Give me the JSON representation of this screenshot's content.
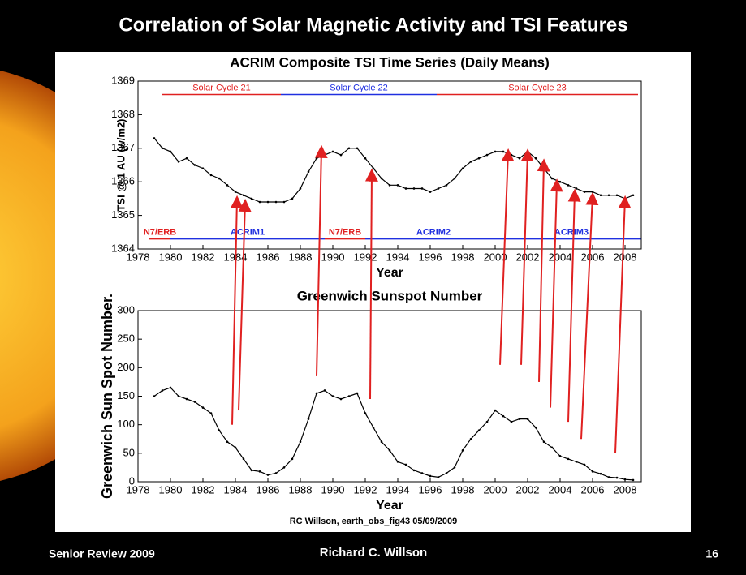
{
  "slide": {
    "title": "Correlation of Solar Magnetic Activity and TSI Features",
    "caption": "RC Willson, earth_obs_fig43  05/09/2009",
    "footer_left": "Senior Review 2009",
    "footer_center": "Richard C. Willson",
    "page_number": "16"
  },
  "chart_data": [
    {
      "type": "line",
      "title": "ACRIM Composite TSI Time Series (Daily Means)",
      "x_label": "Year",
      "y_label": "TSI @ 1 AU (w/m2)",
      "xlim": [
        1978,
        2009
      ],
      "xticks": [
        1978,
        1980,
        1982,
        1984,
        1986,
        1988,
        1990,
        1992,
        1994,
        1996,
        1998,
        2000,
        2002,
        2004,
        2006,
        2008
      ],
      "ylim": [
        1364,
        1369
      ],
      "yticks": [
        1364,
        1365,
        1366,
        1367,
        1368,
        1369
      ],
      "grid": false,
      "x": [
        1979.0,
        1979.5,
        1980.0,
        1980.5,
        1981.0,
        1981.5,
        1982.0,
        1982.5,
        1983.0,
        1983.5,
        1984.0,
        1984.5,
        1985.0,
        1985.5,
        1986.0,
        1986.5,
        1987.0,
        1987.5,
        1988.0,
        1988.5,
        1989.0,
        1989.5,
        1990.0,
        1990.5,
        1991.0,
        1991.5,
        1992.0,
        1992.5,
        1993.0,
        1993.5,
        1994.0,
        1994.5,
        1995.0,
        1995.5,
        1996.0,
        1996.5,
        1997.0,
        1997.5,
        1998.0,
        1998.5,
        1999.0,
        1999.5,
        2000.0,
        2000.5,
        2001.0,
        2001.5,
        2002.0,
        2002.5,
        2003.0,
        2003.5,
        2004.0,
        2004.5,
        2005.0,
        2005.5,
        2006.0,
        2006.5,
        2007.0,
        2007.5,
        2008.0,
        2008.5
      ],
      "series": [
        {
          "color": "#000000",
          "values": [
            1367.3,
            1367.0,
            1366.9,
            1366.6,
            1366.7,
            1366.5,
            1366.4,
            1366.2,
            1366.1,
            1365.9,
            1365.7,
            1365.6,
            1365.5,
            1365.4,
            1365.4,
            1365.4,
            1365.4,
            1365.5,
            1365.8,
            1366.3,
            1366.7,
            1366.8,
            1366.9,
            1366.8,
            1367.0,
            1367.0,
            1366.7,
            1366.4,
            1366.1,
            1365.9,
            1365.9,
            1365.8,
            1365.8,
            1365.8,
            1365.7,
            1365.8,
            1365.9,
            1366.1,
            1366.4,
            1366.6,
            1366.7,
            1366.8,
            1366.9,
            1366.9,
            1366.8,
            1366.7,
            1366.9,
            1366.7,
            1366.4,
            1366.1,
            1366.0,
            1365.9,
            1365.8,
            1365.7,
            1365.7,
            1365.6,
            1365.6,
            1365.6,
            1365.5,
            1365.6
          ]
        }
      ],
      "cycles": {
        "y": 1368.6,
        "items": [
          {
            "label": "Solar Cycle 21",
            "color": "#e02020",
            "start": 1979.5,
            "end": 1986.8
          },
          {
            "label": "Solar Cycle 22",
            "color": "#2030e0",
            "start": 1986.8,
            "end": 1996.4
          },
          {
            "label": "Solar Cycle 23",
            "color": "#e02020",
            "start": 1996.4,
            "end": 2008.8
          }
        ]
      },
      "instruments": {
        "y": 1364.3,
        "items": [
          {
            "label": "N7/ERB",
            "color": "#e02020",
            "start": 1978.7,
            "end": 1980.0
          },
          {
            "label": "ACRIM1",
            "color": "#2030e0",
            "start": 1980.0,
            "end": 1989.5
          },
          {
            "label": "N7/ERB",
            "color": "#e02020",
            "start": 1989.5,
            "end": 1992.0
          },
          {
            "label": "ACRIM2",
            "color": "#2030e0",
            "start": 1992.0,
            "end": 2000.4
          },
          {
            "label": "ACRIM3",
            "color": "#2030e0",
            "start": 2000.4,
            "end": 2009.0
          }
        ]
      }
    },
    {
      "type": "line",
      "title": "Greenwich Sunspot Number",
      "x_label": "Year",
      "y_label": "Greenwich Sun Spot Number.",
      "xlim": [
        1978,
        2009
      ],
      "xticks": [
        1978,
        1980,
        1982,
        1984,
        1986,
        1988,
        1990,
        1992,
        1994,
        1996,
        1998,
        2000,
        2002,
        2004,
        2006,
        2008
      ],
      "ylim": [
        0,
        300
      ],
      "yticks": [
        0,
        50,
        100,
        150,
        200,
        250,
        300
      ],
      "grid": false,
      "x": [
        1979.0,
        1979.5,
        1980.0,
        1980.5,
        1981.0,
        1981.5,
        1982.0,
        1982.5,
        1983.0,
        1983.5,
        1984.0,
        1984.5,
        1985.0,
        1985.5,
        1986.0,
        1986.5,
        1987.0,
        1987.5,
        1988.0,
        1988.5,
        1989.0,
        1989.5,
        1990.0,
        1990.5,
        1991.0,
        1991.5,
        1992.0,
        1992.5,
        1993.0,
        1993.5,
        1994.0,
        1994.5,
        1995.0,
        1995.5,
        1996.0,
        1996.5,
        1997.0,
        1997.5,
        1998.0,
        1998.5,
        1999.0,
        1999.5,
        2000.0,
        2000.5,
        2001.0,
        2001.5,
        2002.0,
        2002.5,
        2003.0,
        2003.5,
        2004.0,
        2004.5,
        2005.0,
        2005.5,
        2006.0,
        2006.5,
        2007.0,
        2007.5,
        2008.0,
        2008.5
      ],
      "series": [
        {
          "color": "#000000",
          "values": [
            150,
            160,
            165,
            150,
            145,
            140,
            130,
            120,
            90,
            70,
            60,
            40,
            20,
            18,
            12,
            15,
            25,
            40,
            70,
            110,
            155,
            160,
            150,
            145,
            150,
            155,
            120,
            95,
            70,
            55,
            35,
            30,
            20,
            15,
            10,
            8,
            15,
            25,
            55,
            75,
            90,
            105,
            125,
            115,
            105,
            110,
            110,
            95,
            70,
            60,
            45,
            40,
            35,
            30,
            18,
            14,
            8,
            7,
            4,
            3
          ]
        }
      ]
    }
  ],
  "arrows": {
    "color": "#e02020",
    "items": [
      {
        "from_year": 1983.8,
        "sunspot": 100,
        "to_year": 1984.1,
        "tsi": 1365.5
      },
      {
        "from_year": 1984.2,
        "sunspot": 125,
        "to_year": 1984.6,
        "tsi": 1365.4
      },
      {
        "from_year": 1989.0,
        "sunspot": 185,
        "to_year": 1989.3,
        "tsi": 1367.0
      },
      {
        "from_year": 1992.3,
        "sunspot": 145,
        "to_year": 1992.4,
        "tsi": 1366.3
      },
      {
        "from_year": 2000.3,
        "sunspot": 205,
        "to_year": 2000.8,
        "tsi": 1366.9
      },
      {
        "from_year": 2001.6,
        "sunspot": 205,
        "to_year": 2002.0,
        "tsi": 1366.9
      },
      {
        "from_year": 2002.7,
        "sunspot": 175,
        "to_year": 2003.0,
        "tsi": 1366.6
      },
      {
        "from_year": 2003.4,
        "sunspot": 130,
        "to_year": 2003.8,
        "tsi": 1366.0
      },
      {
        "from_year": 2004.5,
        "sunspot": 105,
        "to_year": 2004.9,
        "tsi": 1365.7
      },
      {
        "from_year": 2005.3,
        "sunspot": 75,
        "to_year": 2006.0,
        "tsi": 1365.6
      },
      {
        "from_year": 2007.4,
        "sunspot": 50,
        "to_year": 2008.0,
        "tsi": 1365.5
      }
    ]
  }
}
